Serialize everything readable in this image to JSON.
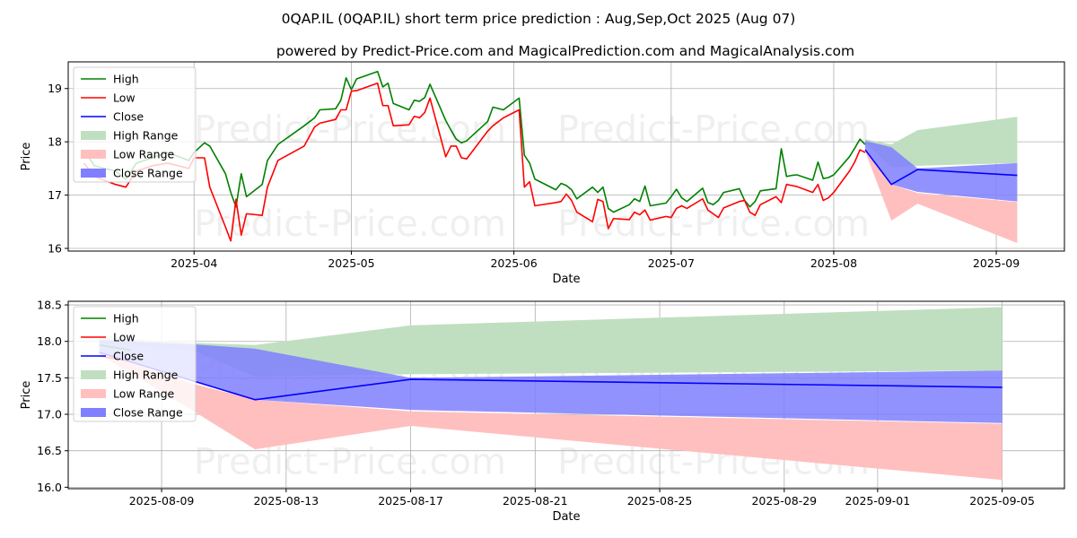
{
  "title": "0QAP.IL (0QAP.IL) short term price prediction : Aug,Sep,Oct 2025 (Aug 07)",
  "subtitle": "powered by Predict-Price.com and MagicalPrediction.com and MagicalAnalysis.com",
  "watermark": "Predict-Price.com",
  "colors": {
    "high": "#008000",
    "low": "#ff0000",
    "close": "#0000ff",
    "high_range": "#c0dfc0",
    "low_range": "#ffbfbf",
    "close_range": "#7f7fff"
  },
  "legend": [
    "High",
    "Low",
    "Close",
    "High Range",
    "Low Range",
    "Close Range"
  ],
  "chart_data": [
    {
      "type": "line",
      "xlabel": "Date",
      "ylabel": "Price",
      "xlim": [
        "2025-03-08",
        "2025-09-14"
      ],
      "ylim": [
        15.95,
        19.5
      ],
      "xticks": [
        "2025-04",
        "2025-05",
        "2025-06",
        "2025-07",
        "2025-08",
        "2025-09"
      ],
      "xtick_dates": [
        "2025-04-01",
        "2025-05-01",
        "2025-06-01",
        "2025-07-01",
        "2025-08-01",
        "2025-09-01"
      ],
      "yticks": [
        16,
        17,
        18,
        19
      ],
      "grid": true,
      "legend_position": "top-left",
      "series": [
        {
          "name": "High",
          "x": [
            "2025-03-11",
            "2025-03-13",
            "2025-03-17",
            "2025-03-19",
            "2025-03-21",
            "2025-03-24",
            "2025-03-27",
            "2025-03-31",
            "2025-04-01",
            "2025-04-03",
            "2025-04-04",
            "2025-04-07",
            "2025-04-08",
            "2025-04-09",
            "2025-04-10",
            "2025-04-11",
            "2025-04-14",
            "2025-04-15",
            "2025-04-16",
            "2025-04-17",
            "2025-04-22",
            "2025-04-24",
            "2025-04-25",
            "2025-04-28",
            "2025-04-29",
            "2025-04-30",
            "2025-05-01",
            "2025-05-02",
            "2025-05-06",
            "2025-05-07",
            "2025-05-08",
            "2025-05-09",
            "2025-05-12",
            "2025-05-13",
            "2025-05-14",
            "2025-05-15",
            "2025-05-16",
            "2025-05-19",
            "2025-05-20",
            "2025-05-21",
            "2025-05-22",
            "2025-05-23",
            "2025-05-27",
            "2025-05-28",
            "2025-05-30",
            "2025-06-02",
            "2025-06-03",
            "2025-06-04",
            "2025-06-05",
            "2025-06-09",
            "2025-06-10",
            "2025-06-11",
            "2025-06-12",
            "2025-06-13",
            "2025-06-16",
            "2025-06-17",
            "2025-06-18",
            "2025-06-19",
            "2025-06-20",
            "2025-06-23",
            "2025-06-24",
            "2025-06-25",
            "2025-06-26",
            "2025-06-27",
            "2025-06-30",
            "2025-07-01",
            "2025-07-02",
            "2025-07-03",
            "2025-07-04",
            "2025-07-07",
            "2025-07-08",
            "2025-07-09",
            "2025-07-10",
            "2025-07-11",
            "2025-07-14",
            "2025-07-15",
            "2025-07-16",
            "2025-07-17",
            "2025-07-18",
            "2025-07-21",
            "2025-07-22",
            "2025-07-23",
            "2025-07-24",
            "2025-07-25",
            "2025-07-28",
            "2025-07-29",
            "2025-07-30",
            "2025-07-31",
            "2025-08-01",
            "2025-08-04",
            "2025-08-05",
            "2025-08-06",
            "2025-08-07"
          ],
          "values": [
            17.85,
            17.55,
            17.45,
            17.3,
            17.6,
            17.7,
            17.8,
            17.65,
            17.8,
            17.98,
            17.92,
            17.4,
            17.05,
            16.78,
            17.4,
            16.97,
            17.2,
            17.65,
            17.8,
            17.95,
            18.3,
            18.45,
            18.6,
            18.62,
            18.78,
            19.2,
            18.98,
            19.18,
            19.32,
            19.03,
            19.1,
            18.72,
            18.6,
            18.78,
            18.76,
            18.83,
            19.08,
            18.4,
            18.22,
            18.05,
            17.98,
            18.02,
            18.38,
            18.65,
            18.6,
            18.82,
            17.75,
            17.6,
            17.3,
            17.1,
            17.22,
            17.18,
            17.1,
            16.93,
            17.15,
            17.05,
            17.15,
            16.75,
            16.68,
            16.82,
            16.93,
            16.88,
            17.17,
            16.8,
            16.85,
            16.97,
            17.11,
            16.95,
            16.88,
            17.13,
            16.86,
            16.82,
            16.9,
            17.05,
            17.12,
            16.9,
            16.78,
            16.88,
            17.08,
            17.12,
            17.87,
            17.35,
            17.37,
            17.38,
            17.28,
            17.62,
            17.31,
            17.33,
            17.38,
            17.72,
            17.88,
            18.05,
            17.95
          ]
        },
        {
          "name": "Low",
          "x": [
            "2025-03-11",
            "2025-03-13",
            "2025-03-17",
            "2025-03-19",
            "2025-03-21",
            "2025-03-24",
            "2025-03-27",
            "2025-03-31",
            "2025-04-01",
            "2025-04-03",
            "2025-04-04",
            "2025-04-07",
            "2025-04-08",
            "2025-04-09",
            "2025-04-10",
            "2025-04-11",
            "2025-04-14",
            "2025-04-15",
            "2025-04-16",
            "2025-04-17",
            "2025-04-22",
            "2025-04-24",
            "2025-04-25",
            "2025-04-28",
            "2025-04-29",
            "2025-04-30",
            "2025-05-01",
            "2025-05-02",
            "2025-05-06",
            "2025-05-07",
            "2025-05-08",
            "2025-05-09",
            "2025-05-12",
            "2025-05-13",
            "2025-05-14",
            "2025-05-15",
            "2025-05-16",
            "2025-05-19",
            "2025-05-20",
            "2025-05-21",
            "2025-05-22",
            "2025-05-23",
            "2025-05-27",
            "2025-05-28",
            "2025-05-30",
            "2025-06-02",
            "2025-06-03",
            "2025-06-04",
            "2025-06-05",
            "2025-06-09",
            "2025-06-10",
            "2025-06-11",
            "2025-06-12",
            "2025-06-13",
            "2025-06-16",
            "2025-06-17",
            "2025-06-18",
            "2025-06-19",
            "2025-06-20",
            "2025-06-23",
            "2025-06-24",
            "2025-06-25",
            "2025-06-26",
            "2025-06-27",
            "2025-06-30",
            "2025-07-01",
            "2025-07-02",
            "2025-07-03",
            "2025-07-04",
            "2025-07-07",
            "2025-07-08",
            "2025-07-09",
            "2025-07-10",
            "2025-07-11",
            "2025-07-14",
            "2025-07-15",
            "2025-07-16",
            "2025-07-17",
            "2025-07-18",
            "2025-07-21",
            "2025-07-22",
            "2025-07-23",
            "2025-07-24",
            "2025-07-25",
            "2025-07-28",
            "2025-07-29",
            "2025-07-30",
            "2025-07-31",
            "2025-08-01",
            "2025-08-04",
            "2025-08-05",
            "2025-08-06",
            "2025-08-07"
          ],
          "values": [
            17.6,
            17.35,
            17.2,
            17.15,
            17.45,
            17.55,
            17.6,
            17.5,
            17.7,
            17.7,
            17.15,
            16.4,
            16.14,
            16.92,
            16.25,
            16.65,
            16.62,
            17.15,
            17.4,
            17.65,
            17.92,
            18.28,
            18.35,
            18.42,
            18.6,
            18.6,
            18.95,
            18.96,
            19.1,
            18.68,
            18.68,
            18.3,
            18.32,
            18.48,
            18.45,
            18.55,
            18.82,
            17.72,
            17.92,
            17.92,
            17.7,
            17.68,
            18.2,
            18.3,
            18.45,
            18.6,
            17.15,
            17.25,
            16.8,
            16.86,
            16.88,
            17.02,
            16.9,
            16.68,
            16.5,
            16.92,
            16.88,
            16.37,
            16.56,
            16.54,
            16.68,
            16.63,
            16.72,
            16.53,
            16.6,
            16.58,
            16.75,
            16.8,
            16.75,
            16.93,
            16.72,
            16.65,
            16.58,
            16.76,
            16.88,
            16.9,
            16.68,
            16.62,
            16.82,
            16.97,
            16.86,
            17.2,
            17.18,
            17.16,
            17.05,
            17.2,
            16.9,
            16.95,
            17.05,
            17.45,
            17.62,
            17.85,
            17.8
          ]
        },
        {
          "name": "High Range",
          "x": [
            "2025-08-07",
            "2025-08-12",
            "2025-08-17",
            "2025-09-05"
          ],
          "upper": [
            18.05,
            17.95,
            18.22,
            18.47
          ],
          "lower": [
            17.98,
            17.52,
            17.55,
            17.6
          ]
        },
        {
          "name": "Low Range",
          "x": [
            "2025-08-07",
            "2025-08-12",
            "2025-08-17",
            "2025-09-05"
          ],
          "upper": [
            17.85,
            17.2,
            17.04,
            16.87
          ],
          "lower": [
            17.82,
            16.52,
            16.84,
            16.1
          ]
        },
        {
          "name": "Close Range",
          "x": [
            "2025-08-07",
            "2025-08-12",
            "2025-08-17",
            "2025-09-05"
          ],
          "upper": [
            18.02,
            17.9,
            17.5,
            17.6
          ],
          "lower": [
            17.85,
            17.2,
            17.06,
            16.88
          ]
        },
        {
          "name": "Close",
          "x": [
            "2025-08-07",
            "2025-08-12",
            "2025-08-17",
            "2025-09-05"
          ],
          "values": [
            17.85,
            17.2,
            17.48,
            17.37
          ]
        }
      ]
    },
    {
      "type": "line",
      "xlabel": "Date",
      "ylabel": "Price",
      "xlim": [
        "2025-08-06",
        "2025-09-07"
      ],
      "ylim": [
        15.98,
        18.55
      ],
      "xticks": [
        "2025-08-09",
        "2025-08-13",
        "2025-08-17",
        "2025-08-21",
        "2025-08-25",
        "2025-08-29",
        "2025-09-01",
        "2025-09-05"
      ],
      "yticks": [
        "16.0",
        "16.5",
        "17.0",
        "17.5",
        "18.0",
        "18.5"
      ],
      "ytick_values": [
        16.0,
        16.5,
        17.0,
        17.5,
        18.0,
        18.5
      ],
      "grid": true,
      "legend_position": "top-left",
      "series": [
        {
          "name": "High Range",
          "x": [
            "2025-08-07",
            "2025-08-10",
            "2025-08-12",
            "2025-08-17",
            "2025-09-05"
          ],
          "upper": [
            18.05,
            17.98,
            17.95,
            18.22,
            18.47
          ],
          "lower": [
            17.98,
            17.88,
            17.52,
            17.55,
            17.6
          ]
        },
        {
          "name": "Low Range",
          "x": [
            "2025-08-07",
            "2025-08-10",
            "2025-08-12",
            "2025-08-17",
            "2025-09-05"
          ],
          "upper": [
            17.85,
            17.42,
            17.2,
            17.04,
            16.87
          ],
          "lower": [
            17.82,
            17.05,
            16.52,
            16.84,
            16.1
          ]
        },
        {
          "name": "Close Range",
          "x": [
            "2025-08-07",
            "2025-08-10",
            "2025-08-12",
            "2025-08-17",
            "2025-09-05"
          ],
          "upper": [
            18.02,
            17.96,
            17.9,
            17.5,
            17.6
          ],
          "lower": [
            17.85,
            17.45,
            17.2,
            17.06,
            16.88
          ]
        },
        {
          "name": "High",
          "x": [
            "2025-08-07",
            "2025-08-08"
          ],
          "values": [
            17.95,
            17.88
          ]
        },
        {
          "name": "Low",
          "x": [
            "2025-08-07",
            "2025-08-08"
          ],
          "values": [
            17.8,
            17.73
          ]
        },
        {
          "name": "Close",
          "x": [
            "2025-08-07",
            "2025-08-12",
            "2025-08-17",
            "2025-09-05"
          ],
          "values": [
            17.85,
            17.2,
            17.48,
            17.37
          ]
        }
      ]
    }
  ]
}
